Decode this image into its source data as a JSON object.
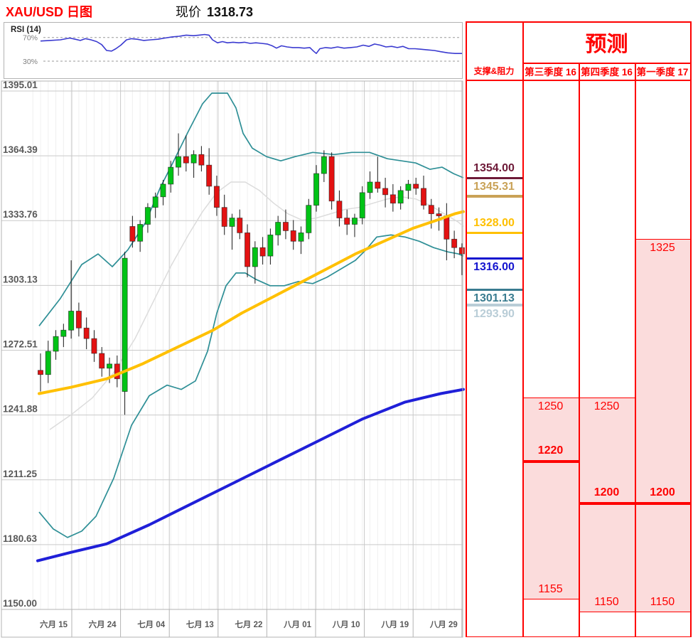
{
  "header": {
    "title": "XAU/USD 日图",
    "price_label": "现价",
    "current_price": "1318.73"
  },
  "rsi_panel": {
    "label": "RSI (14)",
    "upper_label": "70%",
    "lower_label": "30%",
    "upper_level": 70,
    "lower_level": 30,
    "series": [
      [
        57,
        64
      ],
      [
        70,
        65
      ],
      [
        85,
        66
      ],
      [
        98,
        69
      ],
      [
        106,
        67
      ],
      [
        113,
        65
      ],
      [
        120,
        68
      ],
      [
        128,
        66
      ],
      [
        136,
        63
      ],
      [
        143,
        58
      ],
      [
        150,
        48
      ],
      [
        157,
        47
      ],
      [
        163,
        51
      ],
      [
        170,
        57
      ],
      [
        178,
        66
      ],
      [
        185,
        68
      ],
      [
        193,
        67
      ],
      [
        202,
        65
      ],
      [
        212,
        66
      ],
      [
        222,
        67
      ],
      [
        232,
        69
      ],
      [
        242,
        71
      ],
      [
        252,
        72
      ],
      [
        262,
        74
      ],
      [
        272,
        73
      ],
      [
        280,
        74
      ],
      [
        288,
        75
      ],
      [
        294,
        74
      ],
      [
        299,
        66
      ],
      [
        306,
        61
      ],
      [
        313,
        63
      ],
      [
        320,
        61
      ],
      [
        328,
        62
      ],
      [
        336,
        61
      ],
      [
        344,
        62
      ],
      [
        352,
        60
      ],
      [
        360,
        61
      ],
      [
        368,
        60
      ],
      [
        376,
        59
      ],
      [
        383,
        56
      ],
      [
        389,
        52
      ],
      [
        396,
        56
      ],
      [
        404,
        54
      ],
      [
        412,
        53
      ],
      [
        420,
        53
      ],
      [
        428,
        52
      ],
      [
        436,
        53
      ],
      [
        441,
        47
      ],
      [
        445,
        43
      ],
      [
        450,
        51
      ],
      [
        458,
        53
      ],
      [
        466,
        52
      ],
      [
        475,
        54
      ],
      [
        484,
        52
      ],
      [
        493,
        53
      ],
      [
        502,
        54
      ],
      [
        511,
        57
      ],
      [
        519,
        55
      ],
      [
        527,
        59
      ],
      [
        535,
        57
      ],
      [
        543,
        54
      ],
      [
        551,
        55
      ],
      [
        559,
        53
      ],
      [
        567,
        55
      ],
      [
        575,
        51
      ],
      [
        584,
        51
      ],
      [
        593,
        50
      ],
      [
        602,
        49
      ],
      [
        611,
        48
      ],
      [
        620,
        46
      ],
      [
        630,
        44
      ],
      [
        640,
        43
      ],
      [
        650,
        43
      ]
    ]
  },
  "chart_data": {
    "type": "candlestick",
    "title": "XAU/USD 日图",
    "ylim": [
      1150,
      1395.01
    ],
    "grid": true,
    "y_axis_labels": [
      "1395.01",
      "1364.39",
      "1333.76",
      "1303.13",
      "1272.51",
      "1241.88",
      "1211.25",
      "1180.63",
      "1150.00"
    ],
    "x_axis_labels": [
      "六月 15",
      "六月 24",
      "七月 04",
      "七月 13",
      "七月 22",
      "八月 01",
      "八月 10",
      "八月 19",
      "八月 29"
    ],
    "candles_ohlc": [
      [
        1263,
        1271,
        1253,
        1261
      ],
      [
        1261,
        1277,
        1257,
        1272
      ],
      [
        1272,
        1282,
        1268,
        1279
      ],
      [
        1279,
        1285,
        1274,
        1282
      ],
      [
        1282,
        1315,
        1278,
        1291
      ],
      [
        1291,
        1295,
        1279,
        1283
      ],
      [
        1283,
        1288,
        1273,
        1278
      ],
      [
        1278,
        1282,
        1267,
        1271
      ],
      [
        1271,
        1274,
        1260,
        1264
      ],
      [
        1264,
        1269,
        1257,
        1266
      ],
      [
        1266,
        1270,
        1255,
        1259
      ],
      [
        1253,
        1319,
        1242,
        1316
      ],
      [
        1331,
        1336,
        1321,
        1324
      ],
      [
        1324,
        1334,
        1319,
        1332
      ],
      [
        1332,
        1342,
        1328,
        1340
      ],
      [
        1340,
        1347,
        1335,
        1345
      ],
      [
        1345,
        1353,
        1341,
        1351
      ],
      [
        1351,
        1362,
        1347,
        1359
      ],
      [
        1359,
        1375,
        1355,
        1364
      ],
      [
        1364,
        1374,
        1357,
        1361
      ],
      [
        1361,
        1367,
        1354,
        1365
      ],
      [
        1365,
        1369,
        1357,
        1360
      ],
      [
        1360,
        1368,
        1346,
        1350
      ],
      [
        1350,
        1355,
        1336,
        1340
      ],
      [
        1340,
        1346,
        1327,
        1331
      ],
      [
        1331,
        1337,
        1320,
        1335
      ],
      [
        1335,
        1339,
        1325,
        1328
      ],
      [
        1328,
        1332,
        1307,
        1312
      ],
      [
        1312,
        1324,
        1304,
        1321
      ],
      [
        1321,
        1326,
        1313,
        1317
      ],
      [
        1317,
        1330,
        1313,
        1327
      ],
      [
        1327,
        1336,
        1322,
        1333
      ],
      [
        1333,
        1339,
        1325,
        1329
      ],
      [
        1329,
        1334,
        1320,
        1324
      ],
      [
        1324,
        1331,
        1318,
        1328
      ],
      [
        1328,
        1344,
        1325,
        1341
      ],
      [
        1341,
        1360,
        1338,
        1356
      ],
      [
        1356,
        1367,
        1352,
        1364
      ],
      [
        1364,
        1366,
        1339,
        1343
      ],
      [
        1343,
        1348,
        1331,
        1335
      ],
      [
        1335,
        1339,
        1327,
        1332
      ],
      [
        1332,
        1337,
        1326,
        1335
      ],
      [
        1335,
        1350,
        1332,
        1347
      ],
      [
        1347,
        1357,
        1344,
        1352
      ],
      [
        1352,
        1364,
        1347,
        1349
      ],
      [
        1349,
        1354,
        1340,
        1346
      ],
      [
        1346,
        1351,
        1338,
        1342
      ],
      [
        1342,
        1350,
        1339,
        1348
      ],
      [
        1348,
        1353,
        1344,
        1351
      ],
      [
        1351,
        1354,
        1346,
        1349
      ],
      [
        1349,
        1355,
        1339,
        1341
      ],
      [
        1341,
        1344,
        1330,
        1337
      ],
      [
        1337,
        1340,
        1329,
        1336
      ],
      [
        1336,
        1342,
        1315,
        1325
      ],
      [
        1325,
        1329,
        1316,
        1321
      ],
      [
        1321,
        1323,
        1308,
        1318
      ]
    ],
    "overlays": {
      "bollinger_upper": [
        [
          55,
          1284
        ],
        [
          85,
          1297
        ],
        [
          115,
          1313
        ],
        [
          138,
          1318
        ],
        [
          158,
          1312
        ],
        [
          180,
          1320
        ],
        [
          205,
          1333
        ],
        [
          225,
          1349
        ],
        [
          243,
          1361
        ],
        [
          265,
          1376
        ],
        [
          285,
          1389
        ],
        [
          298,
          1394
        ],
        [
          320,
          1394
        ],
        [
          332,
          1387
        ],
        [
          342,
          1375
        ],
        [
          355,
          1368
        ],
        [
          375,
          1364
        ],
        [
          395,
          1362
        ],
        [
          415,
          1364
        ],
        [
          440,
          1366
        ],
        [
          470,
          1365
        ],
        [
          495,
          1366
        ],
        [
          520,
          1366
        ],
        [
          545,
          1363
        ],
        [
          565,
          1362
        ],
        [
          585,
          1361
        ],
        [
          605,
          1358
        ],
        [
          622,
          1359
        ],
        [
          638,
          1356
        ],
        [
          652,
          1354
        ]
      ],
      "bollinger_lower": [
        [
          55,
          1196
        ],
        [
          75,
          1188
        ],
        [
          95,
          1184
        ],
        [
          115,
          1187
        ],
        [
          135,
          1194
        ],
        [
          160,
          1212
        ],
        [
          185,
          1237
        ],
        [
          210,
          1251
        ],
        [
          235,
          1256
        ],
        [
          255,
          1254
        ],
        [
          275,
          1258
        ],
        [
          292,
          1272
        ],
        [
          305,
          1290
        ],
        [
          318,
          1303
        ],
        [
          332,
          1309
        ],
        [
          345,
          1309
        ],
        [
          360,
          1306
        ],
        [
          380,
          1303
        ],
        [
          400,
          1303
        ],
        [
          420,
          1305
        ],
        [
          440,
          1304
        ],
        [
          460,
          1307
        ],
        [
          480,
          1311
        ],
        [
          500,
          1315
        ],
        [
          515,
          1320
        ],
        [
          530,
          1326
        ],
        [
          550,
          1327
        ],
        [
          570,
          1326
        ],
        [
          590,
          1324
        ],
        [
          610,
          1321
        ],
        [
          630,
          1319
        ],
        [
          645,
          1318
        ],
        [
          652,
          1317
        ]
      ],
      "sma20": [
        [
          70,
          1235
        ],
        [
          100,
          1242
        ],
        [
          130,
          1250
        ],
        [
          160,
          1262
        ],
        [
          190,
          1278
        ],
        [
          215,
          1295
        ],
        [
          240,
          1312
        ],
        [
          265,
          1327
        ],
        [
          285,
          1338
        ],
        [
          305,
          1347
        ],
        [
          325,
          1352
        ],
        [
          345,
          1352
        ],
        [
          365,
          1348
        ],
        [
          385,
          1342
        ],
        [
          405,
          1337
        ],
        [
          425,
          1334
        ],
        [
          445,
          1335
        ],
        [
          465,
          1337
        ],
        [
          485,
          1339
        ],
        [
          505,
          1340
        ],
        [
          525,
          1342
        ],
        [
          545,
          1344
        ],
        [
          565,
          1345
        ],
        [
          585,
          1344
        ],
        [
          605,
          1341
        ],
        [
          625,
          1337
        ],
        [
          645,
          1333
        ],
        [
          652,
          1331
        ]
      ],
      "ma100": [
        [
          55,
          1252
        ],
        [
          100,
          1255
        ],
        [
          150,
          1259
        ],
        [
          200,
          1266
        ],
        [
          250,
          1274
        ],
        [
          300,
          1282
        ],
        [
          340,
          1290
        ],
        [
          380,
          1297
        ],
        [
          420,
          1304
        ],
        [
          460,
          1311
        ],
        [
          500,
          1318
        ],
        [
          540,
          1324
        ],
        [
          580,
          1330
        ],
        [
          615,
          1334
        ],
        [
          640,
          1337
        ],
        [
          652,
          1338
        ]
      ],
      "ma200": [
        [
          53,
          1173
        ],
        [
          100,
          1177
        ],
        [
          150,
          1181
        ],
        [
          210,
          1190
        ],
        [
          270,
          1200
        ],
        [
          330,
          1210
        ],
        [
          390,
          1220
        ],
        [
          450,
          1230
        ],
        [
          510,
          1240
        ],
        [
          570,
          1248
        ],
        [
          620,
          1252
        ],
        [
          652,
          1254
        ]
      ]
    }
  },
  "levels_panel": {
    "title": "支撑&阻力",
    "levels": [
      {
        "label": "1354.00",
        "price": 1354.0,
        "color": "#6e1a38",
        "text_side": "above"
      },
      {
        "label": "1345.31",
        "price": 1345.31,
        "color": "#c9a257",
        "text_side": "above"
      },
      {
        "label": "1328.00",
        "price": 1328.0,
        "color": "#ffc000",
        "text_side": "above"
      },
      {
        "label": "1316.00",
        "price": 1316.0,
        "color": "#1515cf",
        "text_side": "below"
      },
      {
        "label": "1301.13",
        "price": 1301.13,
        "color": "#3a7c90",
        "text_side": "below"
      },
      {
        "label": "1293.90",
        "price": 1293.9,
        "color": "#b9cdd7",
        "text_side": "below"
      }
    ]
  },
  "forecast": {
    "title": "预测",
    "columns": [
      {
        "label": "第三季度 16",
        "range_high": 1250,
        "point": 1220,
        "range_low": 1155,
        "high_label": "1250",
        "point_label": "1220",
        "low_label": "1155"
      },
      {
        "label": "第四季度 16",
        "range_high": 1250,
        "point": 1200,
        "range_low": 1150,
        "high_label": "1250",
        "point_label": "1200",
        "low_label": "1150"
      },
      {
        "label": "第一季度 17",
        "range_high": 1325,
        "point": 1200,
        "range_low": 1150,
        "high_label": "1325",
        "point_label": "1200",
        "low_label": "1150"
      }
    ]
  },
  "colors": {
    "accent_red": "#fe0000",
    "forecast_pink": "#fbdcdc",
    "candle_up": "#00c316",
    "candle_down": "#e31212",
    "wick": "#1a1a1a",
    "bollinger": "#2e8f96",
    "ma100_yellow": "#ffc000",
    "ma200_blue": "#1f1fd8",
    "sma20_gray": "#dcdcdc",
    "rsi_line": "#3a3ad0",
    "grid": "#c9c9c9",
    "minor_grid": "#f0f0f0",
    "axis_text": "#595959",
    "panel_border": "#b3b3b3"
  }
}
